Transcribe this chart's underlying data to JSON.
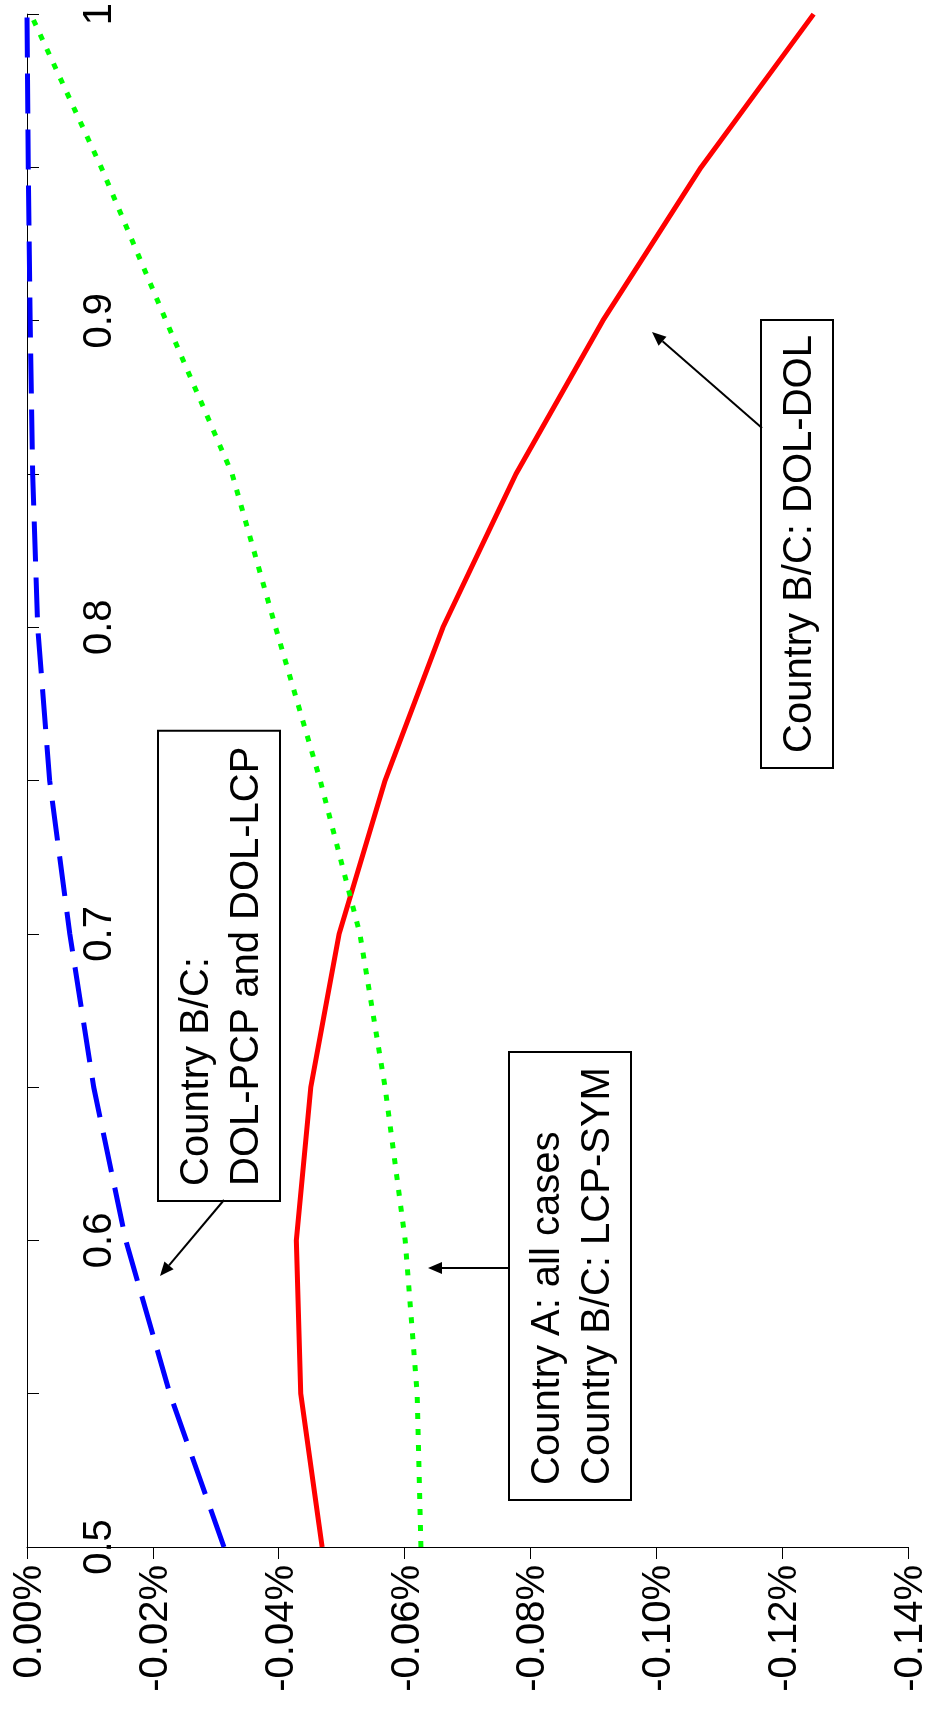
{
  "chart_data": {
    "type": "line",
    "marker": "none",
    "series": [
      {
        "color": "#ff0000",
        "line_style": "solid",
        "x": [
          -0.0469,
          -0.0435,
          -0.0428,
          -0.0451,
          -0.0496,
          -0.0569,
          -0.0661,
          -0.0777,
          -0.0915,
          -0.1071,
          -0.125
        ],
        "values": [
          0.5,
          0.55,
          0.6,
          0.65,
          0.7,
          0.75,
          0.8,
          0.85,
          0.9,
          0.95,
          1
        ]
      },
      {
        "color": "#00ff00",
        "line_style": "dotted",
        "x": [
          -0.0626,
          -0.062,
          -0.0601,
          -0.0569,
          -0.0529,
          -0.0466,
          -0.0395,
          -0.0326,
          -0.0221,
          -0.0118,
          -0.0006
        ],
        "values": [
          0.5,
          0.55,
          0.6,
          0.65,
          0.7,
          0.75,
          0.8,
          0.85,
          0.9,
          0.95,
          1
        ]
      },
      {
        "color": "#0000ff",
        "line_style": "dashed",
        "x": [
          -0.0313,
          -0.0227,
          -0.0157,
          -0.0106,
          -0.0068,
          -0.0036,
          -0.0017,
          -0.0009,
          -0.0005,
          -0.0002,
          0
        ],
        "values": [
          0.5,
          0.55,
          0.6,
          0.65,
          0.7,
          0.75,
          0.8,
          0.85,
          0.9,
          0.95,
          1
        ]
      }
    ],
    "ylim": [
      0.5,
      1
    ],
    "yticks": [
      0.5,
      {
        "value": 0.55,
        "label": null
      },
      0.6,
      {
        "value": 0.65,
        "label": null
      },
      0.7,
      {
        "value": 0.75,
        "label": null
      },
      0.8,
      {
        "value": 0.85,
        "label": null
      },
      0.9,
      {
        "value": 0.95,
        "label": null
      },
      1
    ],
    "xlim": [
      0,
      -0.14
    ],
    "xticks": [
      {
        "value": 0,
        "label": "0.00%"
      },
      {
        "value": -0.02,
        "label": "-0.02%"
      },
      {
        "value": -0.04,
        "label": "-0.04%"
      },
      {
        "value": -0.06,
        "label": "-0.06%"
      },
      {
        "value": -0.08,
        "label": "-0.08%"
      },
      {
        "value": -0.1,
        "label": "-0.10%"
      },
      {
        "value": -0.12,
        "label": "-0.12%"
      },
      {
        "value": -0.14,
        "label": "-0.14%"
      }
    ],
    "annotations": [
      "Country B/C: DOL-DOL",
      "Country B/C:\nDOL-PCP and DOL-LCP",
      "Country A: all cases\nCountry B/C: LCP-SYM"
    ]
  }
}
